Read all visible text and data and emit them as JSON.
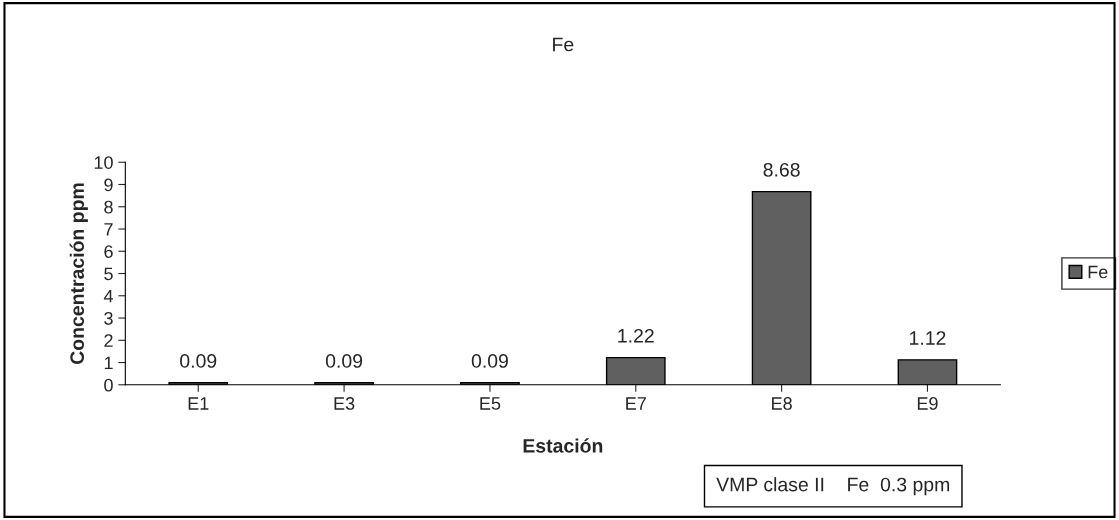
{
  "chart_data": {
    "type": "bar",
    "title": "Fe",
    "xlabel": "Estación",
    "ylabel": "Concentración ppm",
    "categories": [
      "E1",
      "E3",
      "E5",
      "E7",
      "E8",
      "E9"
    ],
    "series": [
      {
        "name": "Fe",
        "color": "#606060",
        "values": [
          0.09,
          0.09,
          0.09,
          1.22,
          8.68,
          1.12
        ]
      }
    ],
    "ylim": [
      0,
      10
    ],
    "yticks": [
      0,
      1,
      2,
      3,
      4,
      5,
      6,
      7,
      8,
      9,
      10
    ],
    "data_labels": true,
    "legend": "right",
    "grid": false,
    "annotations": [
      "VMP clase II    Fe  0.3 ppm"
    ]
  }
}
